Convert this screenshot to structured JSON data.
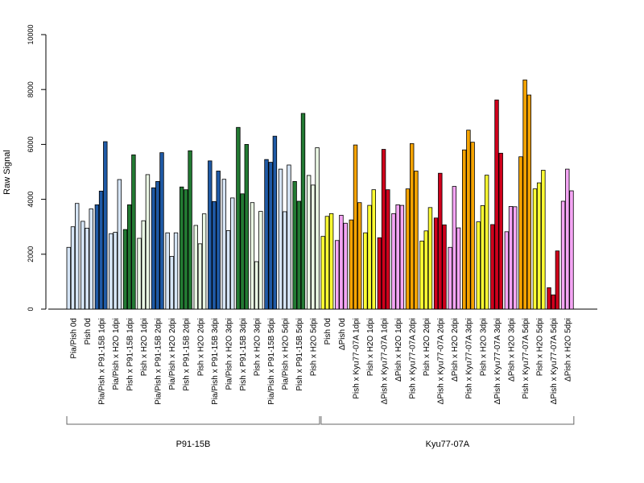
{
  "chart_data": {
    "type": "bar",
    "ylabel": "Raw Signal",
    "ylim": [
      0,
      10000
    ],
    "yticks": [
      0,
      2000,
      4000,
      6000,
      8000,
      10000
    ],
    "grid": false,
    "colors": {
      "lightblue": "#d6e5f6",
      "blue": "#1f5aa6",
      "lightgreen": "#eaf7e4",
      "green": "#237a33",
      "yellow": "#ffff33",
      "pink": "#f4a5f4",
      "orange": "#f5a300",
      "red": "#d0001c"
    },
    "categories": [
      {
        "label": "Pia/Pish 0d",
        "color": "lightblue",
        "values": [
          2250,
          3000,
          3850
        ]
      },
      {
        "label": "Pish 0d",
        "color": "lightblue",
        "values": [
          3200,
          2950,
          3650
        ]
      },
      {
        "label": "Pia/Pish x P91-15B 1dpi",
        "color": "blue",
        "values": [
          3800,
          4300,
          6100
        ]
      },
      {
        "label": "Pia/Pish x H2O 1dpi",
        "color": "lightblue",
        "values": [
          2750,
          2800,
          4720
        ]
      },
      {
        "label": "Pish x P91-15B 1dpi",
        "color": "green",
        "values": [
          2900,
          3800,
          5620
        ]
      },
      {
        "label": "Pish x H2O 1dpi",
        "color": "lightgreen",
        "values": [
          2580,
          3220,
          4900
        ]
      },
      {
        "label": "Pia/Pish x P91-15B 2dpi",
        "color": "blue",
        "values": [
          4420,
          4650,
          5700
        ]
      },
      {
        "label": "Pia/Pish x H2O 2dpi",
        "color": "lightblue",
        "values": [
          2780,
          1920,
          2780
        ]
      },
      {
        "label": "Pish x P91-15B 2dpi",
        "color": "green",
        "values": [
          4450,
          4350,
          5770
        ]
      },
      {
        "label": "Pish x H2O 2dpi",
        "color": "lightgreen",
        "values": [
          3050,
          2380,
          3470
        ]
      },
      {
        "label": "Pia/Pish x P91-15B 3dpi",
        "color": "blue",
        "values": [
          5400,
          3920,
          5030
        ]
      },
      {
        "label": "Pia/Pish x H2O 3dpi",
        "color": "lightblue",
        "values": [
          4730,
          2860,
          4050
        ]
      },
      {
        "label": "Pish x P91-15B 3dpi",
        "color": "green",
        "values": [
          6620,
          4200,
          6000
        ]
      },
      {
        "label": "Pish x H2O 3dpi",
        "color": "lightgreen",
        "values": [
          3880,
          1730,
          3560
        ]
      },
      {
        "label": "Pia/Pish x P91-15B 5dpi",
        "color": "blue",
        "values": [
          5450,
          5350,
          6300
        ]
      },
      {
        "label": "Pia/Pish x H2O 5dpi",
        "color": "lightblue",
        "values": [
          5100,
          3550,
          5250
        ]
      },
      {
        "label": "Pish x P91-15B 5dpi",
        "color": "green",
        "values": [
          4650,
          3930,
          7130
        ]
      },
      {
        "label": "Pish x H2O 5dpi",
        "color": "lightgreen",
        "values": [
          4870,
          4520,
          5880
        ]
      },
      {
        "label": "Pish 0d",
        "color": "yellow",
        "values": [
          2650,
          3380,
          3480
        ]
      },
      {
        "label": "ΔPish 0d",
        "color": "pink",
        "values": [
          2500,
          3420,
          3130
        ]
      },
      {
        "label": "Pish x Kyu77-07A 1dpi",
        "color": "orange",
        "values": [
          3250,
          5980,
          3880
        ]
      },
      {
        "label": "Pish x H2O 1dpi",
        "color": "yellow",
        "values": [
          2780,
          3780,
          4350
        ]
      },
      {
        "label": "ΔPish x Kyu77-07A 1dpi",
        "color": "red",
        "values": [
          2600,
          5820,
          4350
        ]
      },
      {
        "label": "ΔPish x H2O 1dpi",
        "color": "pink",
        "values": [
          3480,
          3800,
          3780
        ]
      },
      {
        "label": "Pish x Kyu77-07A 2dpi",
        "color": "orange",
        "values": [
          4380,
          6030,
          5030
        ]
      },
      {
        "label": "Pish x H2O 2dpi",
        "color": "yellow",
        "values": [
          2480,
          2850,
          3700
        ]
      },
      {
        "label": "ΔPish x Kyu77-07A 2dpi",
        "color": "red",
        "values": [
          3320,
          4950,
          3070
        ]
      },
      {
        "label": "ΔPish x H2O 2dpi",
        "color": "pink",
        "values": [
          2250,
          4470,
          2960
        ]
      },
      {
        "label": "Pish x Kyu77-07A 3dpi",
        "color": "orange",
        "values": [
          5800,
          6520,
          6080
        ]
      },
      {
        "label": "Pish x H2O 3dpi",
        "color": "yellow",
        "values": [
          3180,
          3770,
          4880
        ]
      },
      {
        "label": "ΔPish x Kyu77-07A 3dpi",
        "color": "red",
        "values": [
          3080,
          7620,
          5680
        ]
      },
      {
        "label": "ΔPish x H2O 3dpi",
        "color": "pink",
        "values": [
          2820,
          3740,
          3730
        ]
      },
      {
        "label": "Pish x Kyu77-07A 5dpi",
        "color": "orange",
        "values": [
          5550,
          8350,
          7800
        ]
      },
      {
        "label": "Pish x H2O 5dpi",
        "color": "yellow",
        "values": [
          4380,
          4600,
          5060
        ]
      },
      {
        "label": "ΔPish x Kyu77-07A 5dpi",
        "color": "red",
        "values": [
          780,
          520,
          2120
        ]
      },
      {
        "label": "ΔPish x H2O 5dpi",
        "color": "pink",
        "values": [
          3930,
          5100,
          4310
        ]
      }
    ],
    "groups": [
      {
        "label": "P91-15B",
        "first": 0,
        "last": 17
      },
      {
        "label": "Kyu77-07A",
        "first": 18,
        "last": 35
      }
    ]
  }
}
